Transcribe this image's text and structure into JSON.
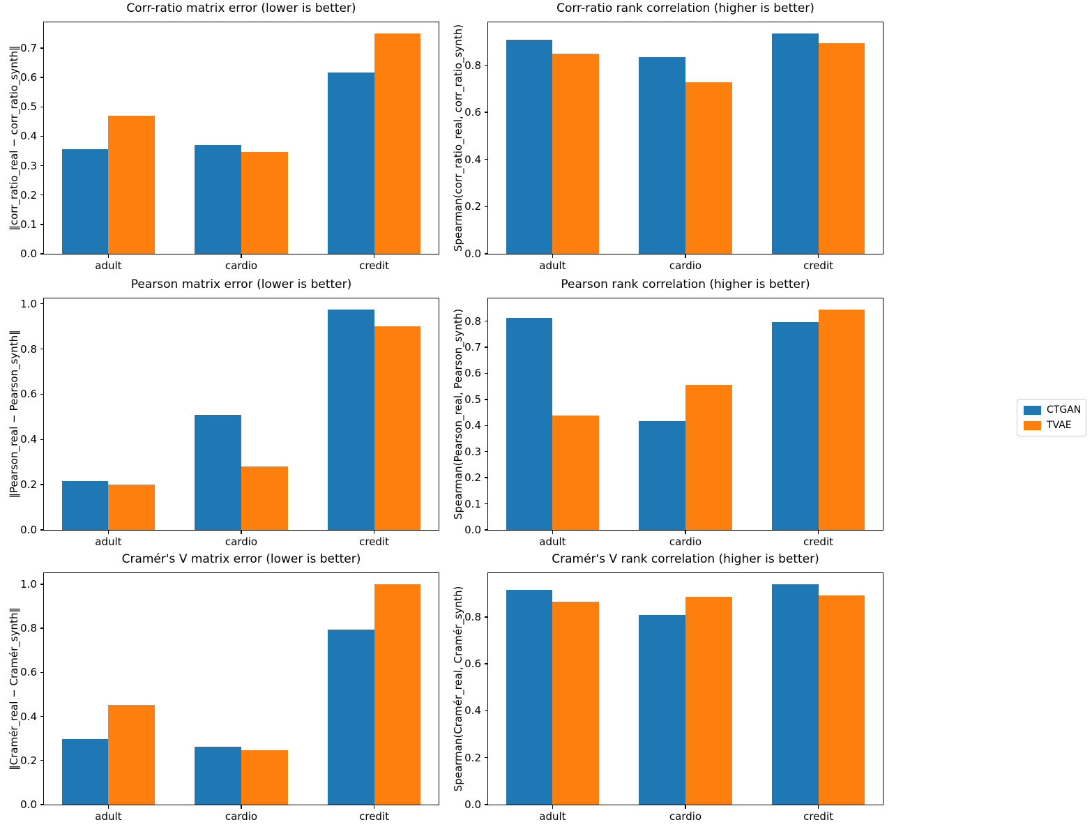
{
  "figure": {
    "background": "#ffffff",
    "legend": {
      "items": [
        {
          "label": "CTGAN",
          "color": "#1f77b4"
        },
        {
          "label": "TVAE",
          "color": "#ff7f0e"
        }
      ],
      "position": "right-of-figure"
    }
  },
  "chart_data": [
    {
      "type": "bar",
      "title": "Corr-ratio matrix error (lower is better)",
      "ylabel": "‖corr_ratio_real − corr_ratio_synth‖",
      "xlabel": "",
      "categories": [
        "adult",
        "cardio",
        "credit"
      ],
      "series": [
        {
          "name": "CTGAN",
          "color": "#1f77b4",
          "values": [
            0.357,
            0.371,
            0.616
          ]
        },
        {
          "name": "TVAE",
          "color": "#ff7f0e",
          "values": [
            0.469,
            0.347,
            0.75
          ]
        }
      ],
      "yticks": [
        0.0,
        0.1,
        0.2,
        0.3,
        0.4,
        0.5,
        0.6,
        0.7
      ],
      "ylim": [
        0,
        0.7875
      ],
      "bar_width": 0.35,
      "grid": false
    },
    {
      "type": "bar",
      "title": "Corr-ratio rank correlation (higher is better)",
      "ylabel": "Spearman(corr_ratio_real, corr_ratio_synth)",
      "xlabel": "",
      "categories": [
        "adult",
        "cardio",
        "credit"
      ],
      "series": [
        {
          "name": "CTGAN",
          "color": "#1f77b4",
          "values": [
            0.908,
            0.833,
            0.935
          ]
        },
        {
          "name": "TVAE",
          "color": "#ff7f0e",
          "values": [
            0.849,
            0.729,
            0.893
          ]
        }
      ],
      "yticks": [
        0.0,
        0.2,
        0.4,
        0.6,
        0.8
      ],
      "ylim": [
        0,
        0.982
      ],
      "bar_width": 0.35,
      "grid": false
    },
    {
      "type": "bar",
      "title": "Pearson matrix error (lower is better)",
      "ylabel": "‖Pearson_real − Pearson_synth‖",
      "xlabel": "",
      "categories": [
        "adult",
        "cardio",
        "credit"
      ],
      "series": [
        {
          "name": "CTGAN",
          "color": "#1f77b4",
          "values": [
            0.215,
            0.509,
            0.975
          ]
        },
        {
          "name": "TVAE",
          "color": "#ff7f0e",
          "values": [
            0.201,
            0.28,
            0.899
          ]
        }
      ],
      "yticks": [
        0.0,
        0.2,
        0.4,
        0.6,
        0.8,
        1.0
      ],
      "ylim": [
        0,
        1.0238
      ],
      "bar_width": 0.35,
      "grid": false
    },
    {
      "type": "bar",
      "title": "Pearson rank correlation (higher is better)",
      "ylabel": "Spearman(Pearson_real, Pearson_synth)",
      "xlabel": "",
      "categories": [
        "adult",
        "cardio",
        "credit"
      ],
      "series": [
        {
          "name": "CTGAN",
          "color": "#1f77b4",
          "values": [
            0.812,
            0.418,
            0.796
          ]
        },
        {
          "name": "TVAE",
          "color": "#ff7f0e",
          "values": [
            0.438,
            0.556,
            0.845
          ]
        }
      ],
      "yticks": [
        0.0,
        0.1,
        0.2,
        0.3,
        0.4,
        0.5,
        0.6,
        0.7,
        0.8
      ],
      "ylim": [
        0,
        0.8873
      ],
      "bar_width": 0.35,
      "grid": false
    },
    {
      "type": "bar",
      "title": "Cramér's V matrix error (lower is better)",
      "ylabel": "‖Cramér_real − Cramér_synth‖",
      "xlabel": "",
      "categories": [
        "adult",
        "cardio",
        "credit"
      ],
      "series": [
        {
          "name": "CTGAN",
          "color": "#1f77b4",
          "values": [
            0.296,
            0.261,
            0.795
          ]
        },
        {
          "name": "TVAE",
          "color": "#ff7f0e",
          "values": [
            0.453,
            0.248,
            1.0
          ]
        }
      ],
      "yticks": [
        0.0,
        0.2,
        0.4,
        0.6,
        0.8,
        1.0
      ],
      "ylim": [
        0,
        1.05
      ],
      "bar_width": 0.35,
      "grid": false
    },
    {
      "type": "bar",
      "title": "Cramér's V rank correlation (higher is better)",
      "ylabel": "Spearman(Cramér_real, Cramér_synth)",
      "xlabel": "",
      "categories": [
        "adult",
        "cardio",
        "credit"
      ],
      "series": [
        {
          "name": "CTGAN",
          "color": "#1f77b4",
          "values": [
            0.915,
            0.81,
            0.94
          ]
        },
        {
          "name": "TVAE",
          "color": "#ff7f0e",
          "values": [
            0.866,
            0.886,
            0.891
          ]
        }
      ],
      "yticks": [
        0.0,
        0.2,
        0.4,
        0.6,
        0.8
      ],
      "ylim": [
        0,
        0.987
      ],
      "bar_width": 0.35,
      "grid": false
    }
  ]
}
